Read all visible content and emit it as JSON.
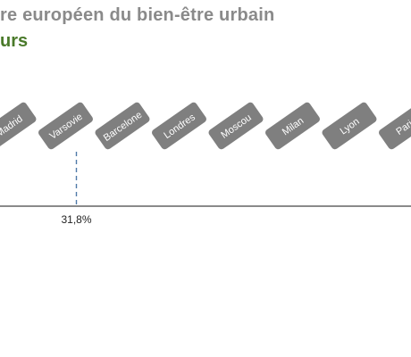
{
  "chart_data": {
    "type": "timeline",
    "title": "re européen du bien-être urbain",
    "subtitle": "urs",
    "categories": [
      "Madrid",
      "Varsovie",
      "Barcelone",
      "Londres",
      "Moscou",
      "Milan",
      "Lyon",
      "Paris"
    ],
    "highlight": {
      "category": "Varsovie",
      "value_label": "31,8%"
    },
    "colors": {
      "title": "#8a8a8a",
      "subtitle": "#4a7a2a",
      "tag_fill": "#7f7f7f",
      "tag_text": "#ffffff",
      "axis": "#444444",
      "marker": "#4f7aa8"
    }
  }
}
